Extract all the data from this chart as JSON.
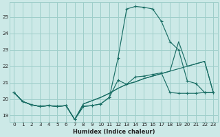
{
  "xlabel": "Humidex (Indice chaleur)",
  "xlim": [
    -0.5,
    23.5
  ],
  "ylim": [
    18.6,
    25.9
  ],
  "yticks": [
    19,
    20,
    21,
    22,
    23,
    24,
    25
  ],
  "xticks": [
    0,
    1,
    2,
    3,
    4,
    5,
    6,
    7,
    8,
    9,
    10,
    11,
    12,
    13,
    14,
    15,
    16,
    17,
    18,
    19,
    20,
    21,
    22,
    23
  ],
  "bg_color": "#cce9e7",
  "grid_color": "#9ececa",
  "line_color": "#1a6e65",
  "series1_x": [
    0,
    1,
    2,
    3,
    4,
    5,
    6,
    7,
    8,
    9,
    10,
    11,
    12,
    13,
    14,
    15,
    16,
    17,
    18,
    19,
    20,
    21,
    22,
    23
  ],
  "series1_y": [
    20.4,
    19.85,
    19.65,
    19.55,
    19.6,
    19.55,
    19.6,
    18.75,
    19.55,
    19.6,
    19.7,
    20.1,
    22.5,
    25.5,
    25.65,
    25.6,
    25.5,
    24.75,
    23.5,
    23.0,
    21.1,
    20.95,
    20.4,
    20.4
  ],
  "series2_x": [
    0,
    1,
    2,
    3,
    4,
    5,
    6,
    7,
    8,
    9,
    10,
    11,
    12,
    13,
    14,
    15,
    16,
    17,
    18,
    19,
    20,
    21,
    22,
    23
  ],
  "series2_y": [
    20.4,
    19.85,
    19.65,
    19.55,
    19.6,
    19.55,
    19.6,
    18.75,
    19.55,
    19.6,
    19.7,
    20.1,
    21.15,
    20.9,
    21.35,
    21.4,
    21.5,
    21.6,
    20.4,
    20.35,
    20.35,
    20.35,
    20.4,
    20.4
  ],
  "series3_x": [
    0,
    1,
    2,
    3,
    4,
    5,
    6,
    7,
    8,
    9,
    10,
    11,
    12,
    13,
    14,
    15,
    16,
    17,
    18,
    19,
    20,
    21,
    22,
    23
  ],
  "series3_y": [
    20.4,
    19.85,
    19.65,
    19.55,
    19.6,
    19.55,
    19.6,
    18.75,
    19.7,
    19.9,
    20.1,
    20.35,
    20.65,
    20.9,
    21.05,
    21.25,
    21.4,
    21.55,
    21.7,
    21.85,
    22.0,
    22.15,
    22.3,
    20.4
  ],
  "series4_x": [
    0,
    1,
    2,
    3,
    4,
    5,
    6,
    7,
    8,
    9,
    10,
    11,
    12,
    13,
    14,
    15,
    16,
    17,
    18,
    19,
    20,
    21,
    22,
    23
  ],
  "series4_y": [
    20.4,
    19.85,
    19.65,
    19.55,
    19.6,
    19.55,
    19.6,
    18.75,
    19.7,
    19.9,
    20.1,
    20.35,
    20.65,
    20.9,
    21.05,
    21.25,
    21.4,
    21.55,
    21.7,
    23.5,
    22.0,
    22.15,
    22.3,
    20.4
  ]
}
